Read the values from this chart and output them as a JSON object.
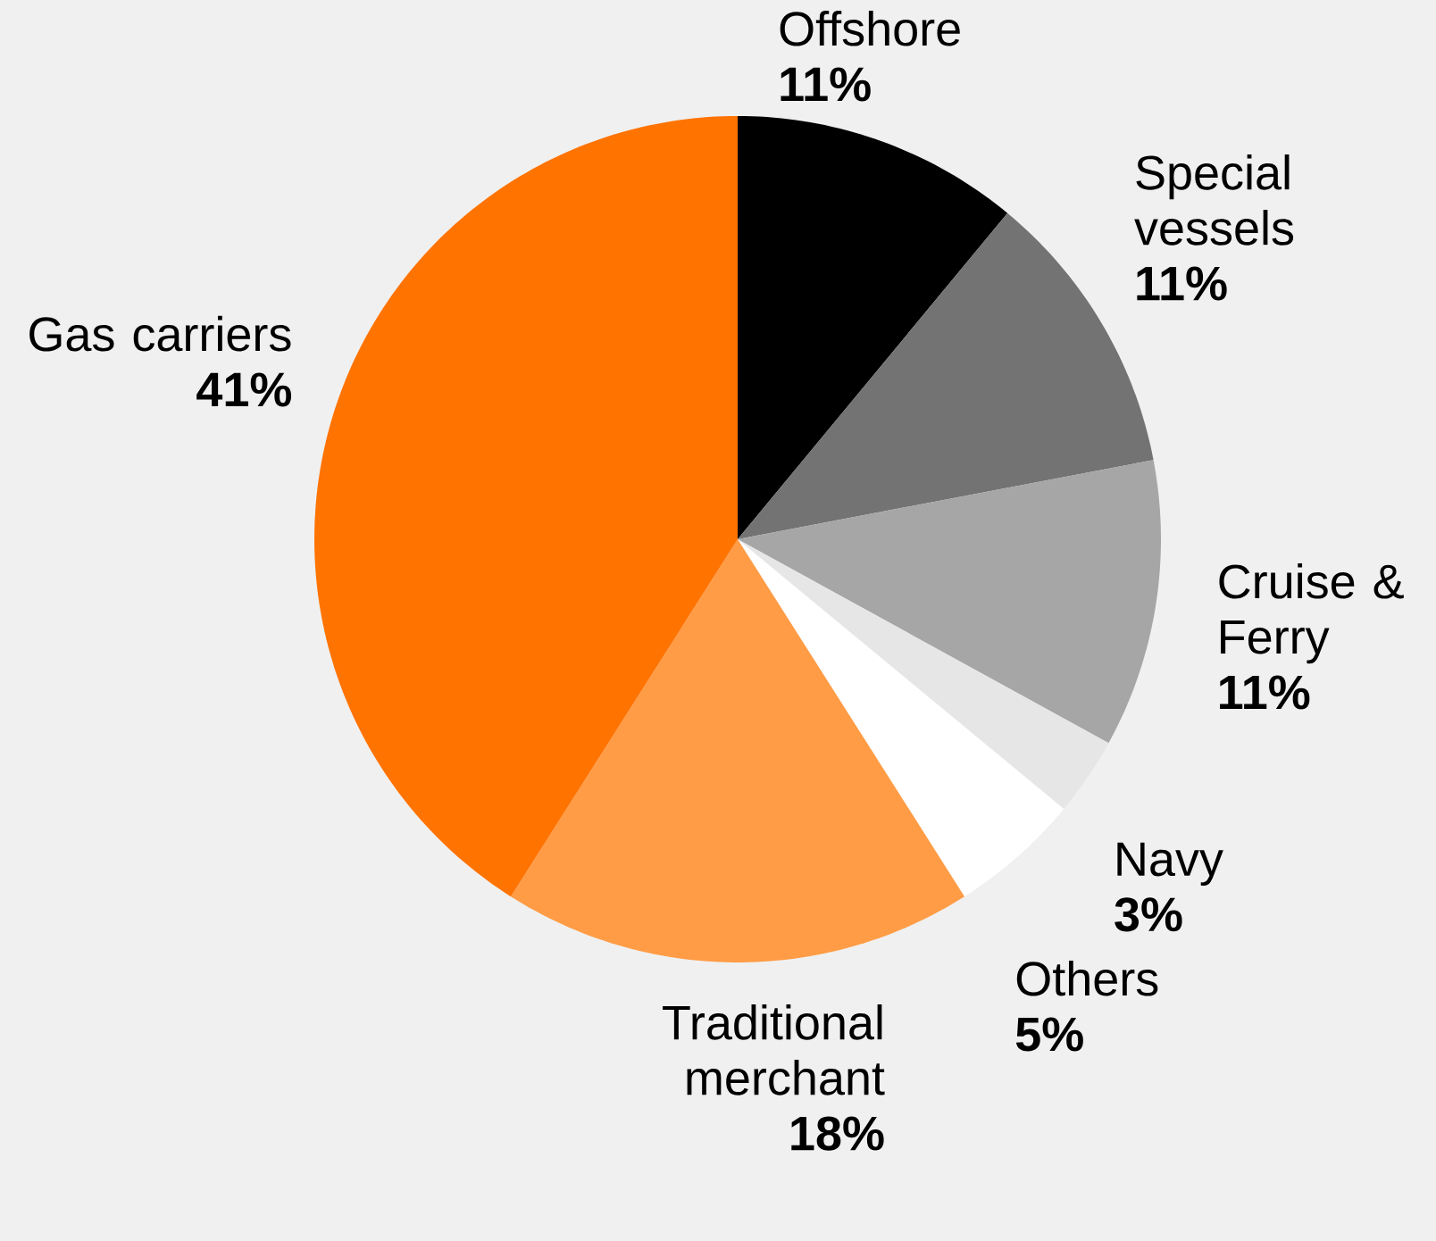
{
  "chart_data": {
    "type": "pie",
    "categories": [
      "Offshore",
      "Special vessels",
      "Cruise & Ferry",
      "Navy",
      "Others",
      "Traditional merchant",
      "Gas carriers"
    ],
    "values": [
      11,
      11,
      11,
      3,
      5,
      18,
      41
    ],
    "colors": [
      "#000000",
      "#737373",
      "#a6a6a6",
      "#e6e6e6",
      "#ffffff",
      "#ff9c45",
      "#ff7300"
    ],
    "value_labels": [
      "11%",
      "11%",
      "11%",
      "3%",
      "5%",
      "18%",
      "41%"
    ]
  }
}
